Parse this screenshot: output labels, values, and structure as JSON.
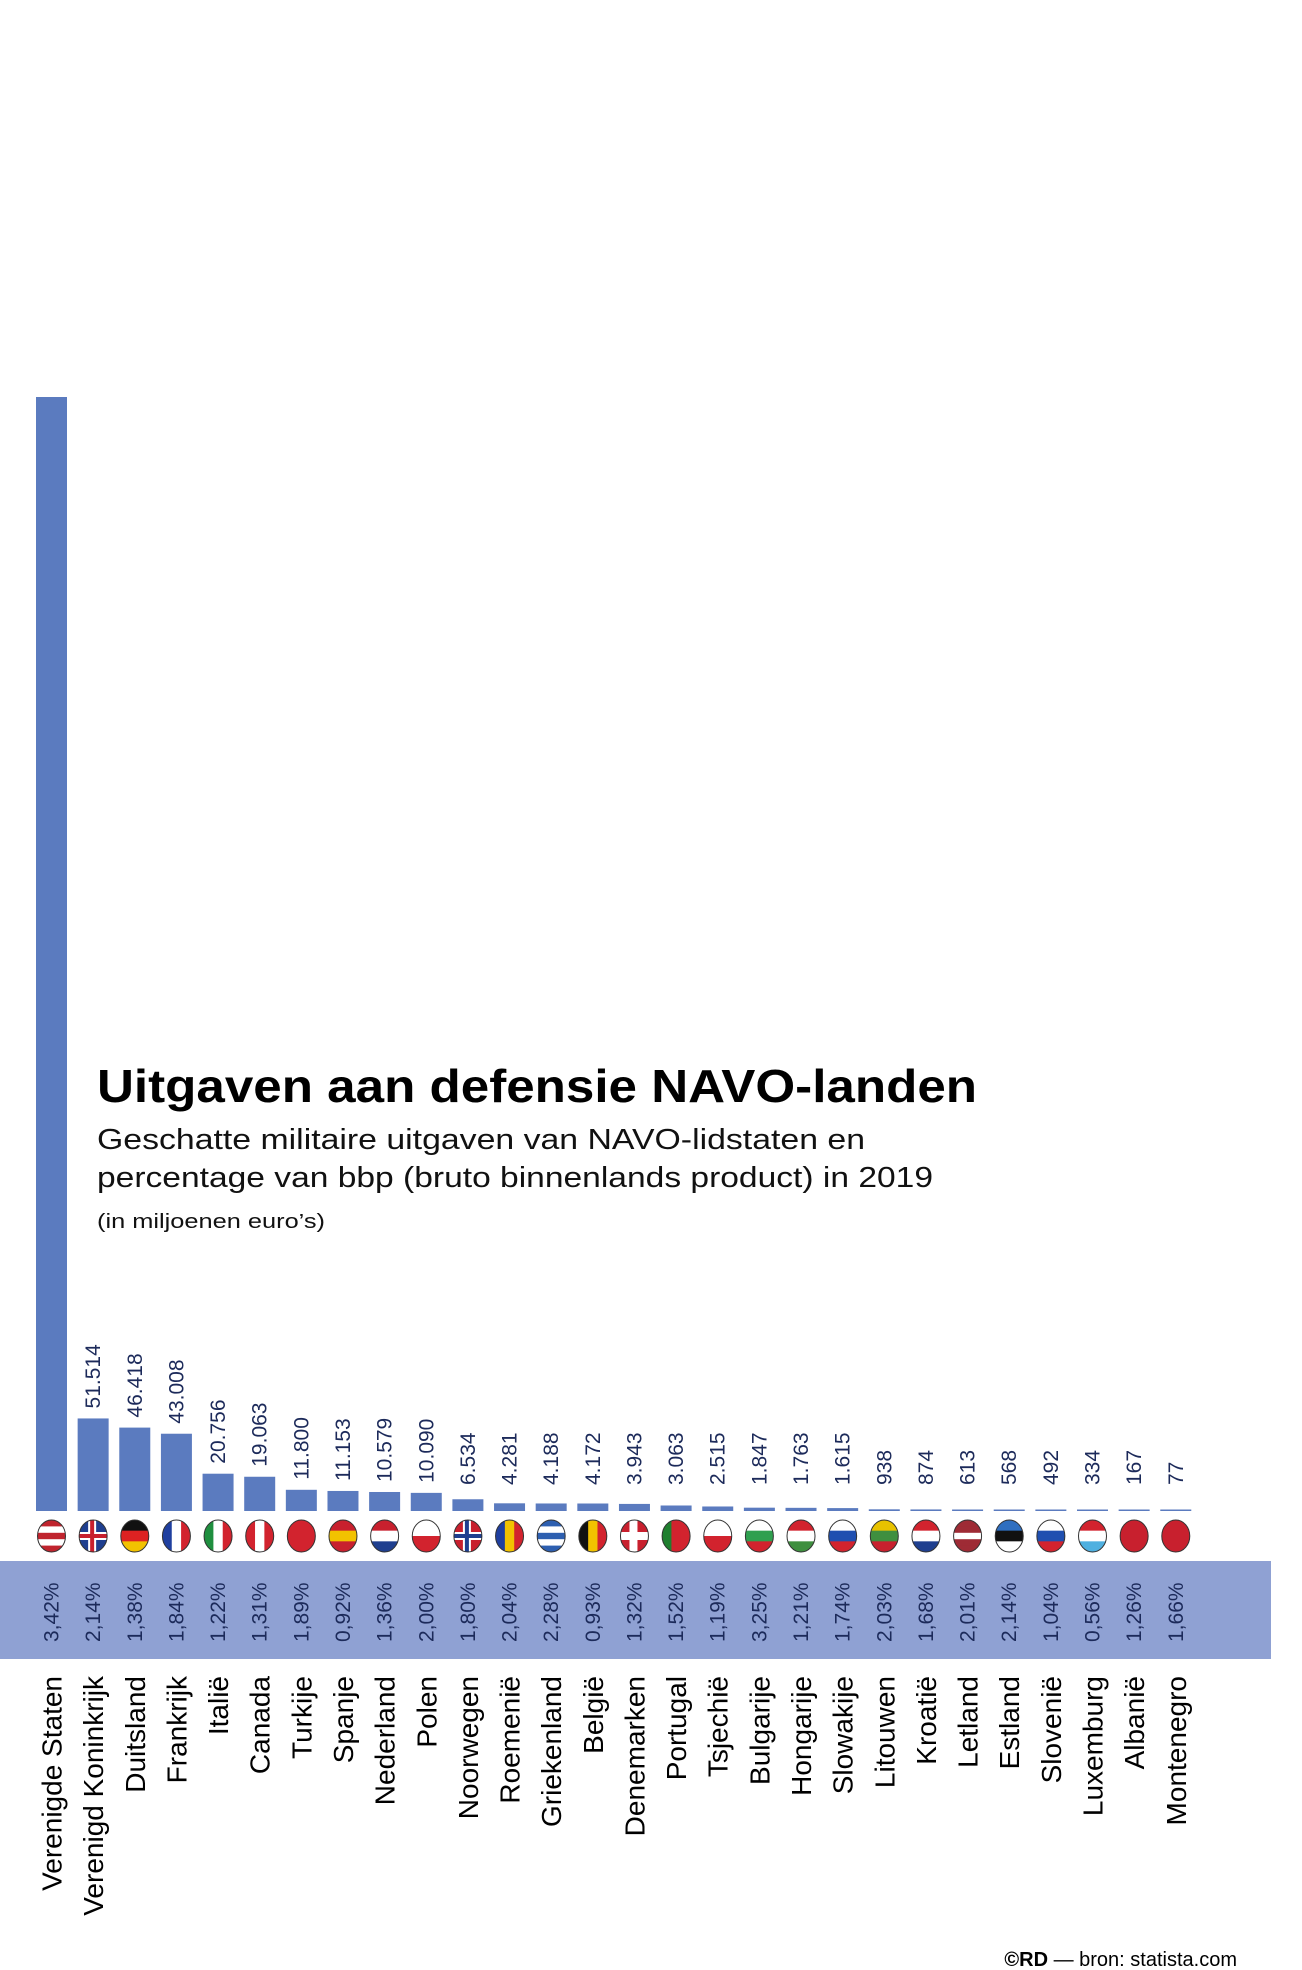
{
  "header": {
    "title": "Uitgaven aan defensie NAVO-landen",
    "subtitle_line1": "Geschatte militaire uitgaven van NAVO-lidstaten en",
    "subtitle_line2": "percentage van bbp (bruto binnenlands product) in 2019",
    "unit_note": "(in miljoenen euro’s)"
  },
  "footer": {
    "copyright": "©RD",
    "source": " — bron: statista.com"
  },
  "colors": {
    "bar": "#5b7bbf",
    "band": "#8fa1d3",
    "label_text": "#1c2a5a"
  },
  "chart_data": {
    "type": "bar",
    "title": "Uitgaven aan defensie NAVO-landen",
    "ylabel": "(in miljoenen euro’s)",
    "grid": false,
    "categories": [
      "Verenigde Staten",
      "Verenigd Koninkrijk",
      "Duitsland",
      "Frankrijk",
      "Italië",
      "Canada",
      "Turkije",
      "Spanje",
      "Nederland",
      "Polen",
      "Noorwegen",
      "Roemenië",
      "Griekenland",
      "België",
      "Denemarken",
      "Portugal",
      "Tsjechië",
      "Bulgarije",
      "Hongarije",
      "Slowakije",
      "Litouwen",
      "Kroatië",
      "Letland",
      "Estland",
      "Slovenië",
      "Luxemburg",
      "Albanië",
      "Montenegro"
    ],
    "values": [
      620000,
      51514,
      46418,
      43008,
      20756,
      19063,
      11800,
      11153,
      10579,
      10090,
      6534,
      4281,
      4188,
      4172,
      3943,
      3063,
      2515,
      1847,
      1763,
      1615,
      938,
      874,
      613,
      568,
      492,
      334,
      167,
      77
    ],
    "value_labels": [
      null,
      "51.514",
      "46.418",
      "43.008",
      "20.756",
      "19.063",
      "11.800",
      "11.153",
      "10.579",
      "10.090",
      "6.534",
      "4.281",
      "4.188",
      "4.172",
      "3.943",
      "3.063",
      "2.515",
      "1.847",
      "1.763",
      "1.615",
      "938",
      "874",
      "613",
      "568",
      "492",
      "334",
      "167",
      "77"
    ],
    "gdp_share_labels": [
      "3,42%",
      "2,14%",
      "1,38%",
      "1,84%",
      "1,22%",
      "1,31%",
      "1,89%",
      "0,92%",
      "1,36%",
      "2,00%",
      "1,80%",
      "2,04%",
      "2,28%",
      "0,93%",
      "1,32%",
      "1,52%",
      "1,19%",
      "3,25%",
      "1,21%",
      "1,74%",
      "2,03%",
      "1,68%",
      "2,01%",
      "2,14%",
      "1,04%",
      "0,56%",
      "1,26%",
      "1,66%"
    ],
    "flags": [
      {
        "icon": "flag-us-icon",
        "dir": "h",
        "colors": [
          "#c0242e",
          "#fff",
          "#c0242e",
          "#fff",
          "#c0242e"
        ]
      },
      {
        "icon": "flag-uk-icon",
        "dir": "cross",
        "colors": [
          "#1f3f8f",
          "#fff",
          "#c8202e"
        ]
      },
      {
        "icon": "flag-de-icon",
        "dir": "h",
        "colors": [
          "#111",
          "#d22",
          "#f2c200"
        ]
      },
      {
        "icon": "flag-fr-icon",
        "dir": "v",
        "colors": [
          "#1f3f9f",
          "#fff",
          "#d2232e"
        ]
      },
      {
        "icon": "flag-it-icon",
        "dir": "v",
        "colors": [
          "#1f8f3f",
          "#fff",
          "#d2232e"
        ]
      },
      {
        "icon": "flag-ca-icon",
        "dir": "v",
        "colors": [
          "#d2232e",
          "#fff",
          "#d2232e"
        ]
      },
      {
        "icon": "flag-tr-icon",
        "dir": "h",
        "colors": [
          "#d2232e"
        ]
      },
      {
        "icon": "flag-es-icon",
        "dir": "h",
        "colors": [
          "#c8202e",
          "#f2c200",
          "#c8202e"
        ]
      },
      {
        "icon": "flag-nl-icon",
        "dir": "h",
        "colors": [
          "#c8202e",
          "#fff",
          "#1f3f8f"
        ]
      },
      {
        "icon": "flag-pl-icon",
        "dir": "h",
        "colors": [
          "#fff",
          "#d2232e"
        ]
      },
      {
        "icon": "flag-no-icon",
        "dir": "cross",
        "colors": [
          "#c8202e",
          "#fff",
          "#1f3f8f"
        ]
      },
      {
        "icon": "flag-ro-icon",
        "dir": "v",
        "colors": [
          "#1f3f9f",
          "#f2c200",
          "#d2232e"
        ]
      },
      {
        "icon": "flag-gr-icon",
        "dir": "h",
        "colors": [
          "#2d5fb0",
          "#fff",
          "#2d5fb0",
          "#fff",
          "#2d5fb0"
        ]
      },
      {
        "icon": "flag-be-icon",
        "dir": "v",
        "colors": [
          "#111",
          "#f2c200",
          "#d2232e"
        ]
      },
      {
        "icon": "flag-dk-icon",
        "dir": "cross",
        "colors": [
          "#c8202e",
          "#fff",
          "#fff"
        ]
      },
      {
        "icon": "flag-pt-icon",
        "dir": "v",
        "colors": [
          "#1f7f2f",
          "#d2232e",
          "#d2232e"
        ]
      },
      {
        "icon": "flag-cz-icon",
        "dir": "h",
        "colors": [
          "#fff",
          "#d2232e"
        ]
      },
      {
        "icon": "flag-bg-icon",
        "dir": "h",
        "colors": [
          "#fff",
          "#2f9f4f",
          "#d2232e"
        ]
      },
      {
        "icon": "flag-hu-icon",
        "dir": "h",
        "colors": [
          "#d2232e",
          "#fff",
          "#3f8f3f"
        ]
      },
      {
        "icon": "flag-sk-icon",
        "dir": "h",
        "colors": [
          "#fff",
          "#1f4fb0",
          "#d2232e"
        ]
      },
      {
        "icon": "flag-lt-icon",
        "dir": "h",
        "colors": [
          "#e8c200",
          "#3f8f3f",
          "#c8202e"
        ]
      },
      {
        "icon": "flag-hr-icon",
        "dir": "h",
        "colors": [
          "#d2232e",
          "#fff",
          "#1f3f8f"
        ]
      },
      {
        "icon": "flag-lv-icon",
        "dir": "h",
        "colors": [
          "#9e2b35",
          "#9e2b35",
          "#fff",
          "#9e2b35",
          "#9e2b35"
        ]
      },
      {
        "icon": "flag-ee-icon",
        "dir": "h",
        "colors": [
          "#2f6fc0",
          "#111",
          "#fff"
        ]
      },
      {
        "icon": "flag-si-icon",
        "dir": "h",
        "colors": [
          "#fff",
          "#1f4fb0",
          "#d2232e"
        ]
      },
      {
        "icon": "flag-lu-icon",
        "dir": "h",
        "colors": [
          "#d2232e",
          "#fff",
          "#4fb0e0"
        ]
      },
      {
        "icon": "flag-al-icon",
        "dir": "h",
        "colors": [
          "#c8202e"
        ]
      },
      {
        "icon": "flag-me-icon",
        "dir": "h",
        "colors": [
          "#c8202e"
        ]
      }
    ]
  }
}
